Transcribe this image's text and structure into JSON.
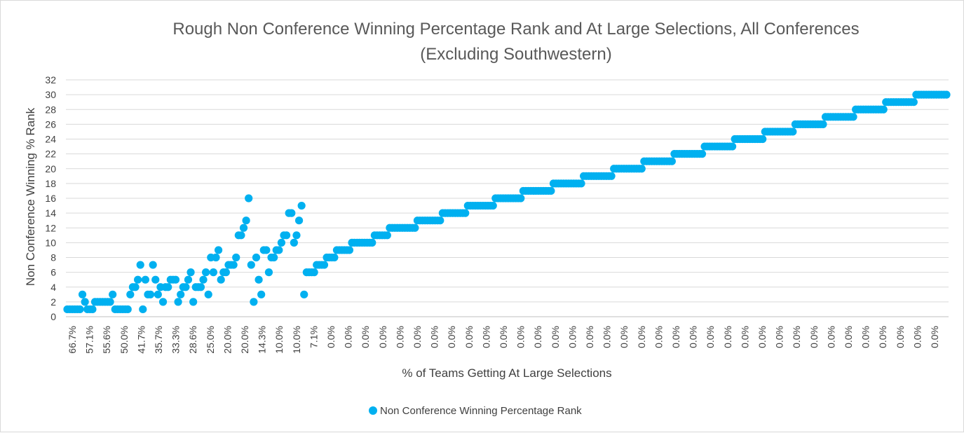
{
  "chart_data": {
    "type": "scatter",
    "title": "Rough Non Conference Winning Percentage Rank and At Large Selections, All Conferences",
    "subtitle": "(Excluding Southwestern)",
    "xlabel": "% of Teams Getting At Large Selections",
    "ylabel": "Non Conference Winning % Rank",
    "ylim": [
      0,
      32
    ],
    "y_ticks": [
      0,
      2,
      4,
      6,
      8,
      10,
      12,
      14,
      16,
      18,
      20,
      22,
      24,
      26,
      28,
      30,
      32
    ],
    "x_tick_labels": [
      "66.7%",
      "57.1%",
      "55.6%",
      "50.0%",
      "41.7%",
      "35.7%",
      "33.3%",
      "28.6%",
      "25.0%",
      "20.0%",
      "20.0%",
      "14.3%",
      "10.0%",
      "10.0%",
      "7.1%",
      "0.0%",
      "0.0%",
      "0.0%",
      "0.0%",
      "0.0%",
      "0.0%",
      "0.0%",
      "0.0%",
      "0.0%",
      "0.0%",
      "0.0%",
      "0.0%",
      "0.0%",
      "0.0%",
      "0.0%",
      "0.0%",
      "0.0%",
      "0.0%",
      "0.0%",
      "0.0%",
      "0.0%",
      "0.0%",
      "0.0%",
      "0.0%",
      "0.0%",
      "0.0%",
      "0.0%",
      "0.0%",
      "0.0%",
      "0.0%",
      "0.0%",
      "0.0%",
      "0.0%",
      "0.0%",
      "0.0%",
      "0.0%"
    ],
    "grid": "horizontal",
    "legend_position": "bottom",
    "series": [
      {
        "name": "Non Conference Winning Percentage Rank",
        "color": "#00b0f0",
        "values": [
          1,
          1,
          1,
          1,
          1,
          1,
          3,
          2,
          1,
          1,
          1,
          2,
          2,
          2,
          2,
          2,
          2,
          2,
          3,
          1,
          1,
          1,
          1,
          1,
          1,
          3,
          4,
          4,
          5,
          7,
          1,
          5,
          3,
          3,
          7,
          5,
          3,
          4,
          2,
          4,
          4,
          5,
          5,
          5,
          2,
          3,
          4,
          4,
          5,
          6,
          2,
          4,
          4,
          4,
          5,
          6,
          3,
          8,
          6,
          8,
          9,
          5,
          6,
          6,
          7,
          7,
          7,
          8,
          11,
          11,
          12,
          13,
          16,
          7,
          2,
          8,
          5,
          3,
          9,
          9,
          6,
          8,
          8,
          9,
          9,
          10,
          11,
          11,
          14,
          14,
          10,
          11,
          13,
          15,
          3,
          6,
          6,
          6,
          6,
          7,
          7,
          7,
          7,
          8,
          8,
          8,
          8,
          9,
          9,
          9,
          9,
          9,
          9,
          10,
          10,
          10,
          10,
          10,
          10,
          10,
          10,
          10,
          11,
          11,
          11,
          11,
          11,
          11,
          12,
          12,
          12,
          12,
          12,
          12,
          12,
          12,
          12,
          12,
          12,
          13,
          13,
          13,
          13,
          13,
          13,
          13,
          13,
          13,
          13,
          14,
          14,
          14,
          14,
          14,
          14,
          14,
          14,
          14,
          14,
          15,
          15,
          15,
          15,
          15,
          15,
          15,
          15,
          15,
          15,
          15,
          16,
          16,
          16,
          16,
          16,
          16,
          16,
          16,
          16,
          16,
          16,
          17,
          17,
          17,
          17,
          17,
          17,
          17,
          17,
          17,
          17,
          17,
          17,
          18,
          18,
          18,
          18,
          18,
          18,
          18,
          18,
          18,
          18,
          18,
          18,
          19,
          19,
          19,
          19,
          19,
          19,
          19,
          19,
          19,
          19,
          19,
          19,
          20,
          20,
          20,
          20,
          20,
          20,
          20,
          20,
          20,
          20,
          20,
          20,
          21,
          21,
          21,
          21,
          21,
          21,
          21,
          21,
          21,
          21,
          21,
          21,
          22,
          22,
          22,
          22,
          22,
          22,
          22,
          22,
          22,
          22,
          22,
          22,
          23,
          23,
          23,
          23,
          23,
          23,
          23,
          23,
          23,
          23,
          23,
          23,
          24,
          24,
          24,
          24,
          24,
          24,
          24,
          24,
          24,
          24,
          24,
          24,
          25,
          25,
          25,
          25,
          25,
          25,
          25,
          25,
          25,
          25,
          25,
          25,
          26,
          26,
          26,
          26,
          26,
          26,
          26,
          26,
          26,
          26,
          26,
          26,
          27,
          27,
          27,
          27,
          27,
          27,
          27,
          27,
          27,
          27,
          27,
          27,
          28,
          28,
          28,
          28,
          28,
          28,
          28,
          28,
          28,
          28,
          28,
          28,
          29,
          29,
          29,
          29,
          29,
          29,
          29,
          29,
          29,
          29,
          29,
          29,
          30,
          30,
          30,
          30,
          30,
          30,
          30,
          30,
          30,
          30,
          30,
          30,
          30
        ]
      }
    ]
  }
}
